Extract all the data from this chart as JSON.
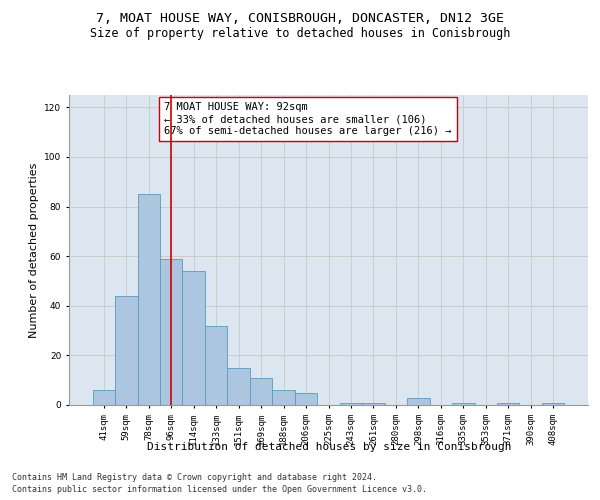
{
  "title_line1": "7, MOAT HOUSE WAY, CONISBROUGH, DONCASTER, DN12 3GE",
  "title_line2": "Size of property relative to detached houses in Conisbrough",
  "xlabel": "Distribution of detached houses by size in Conisbrough",
  "ylabel": "Number of detached properties",
  "bar_labels": [
    "41sqm",
    "59sqm",
    "78sqm",
    "96sqm",
    "114sqm",
    "133sqm",
    "151sqm",
    "169sqm",
    "188sqm",
    "206sqm",
    "225sqm",
    "243sqm",
    "261sqm",
    "280sqm",
    "298sqm",
    "316sqm",
    "335sqm",
    "353sqm",
    "371sqm",
    "390sqm",
    "408sqm"
  ],
  "bar_values": [
    6,
    44,
    85,
    59,
    54,
    32,
    15,
    11,
    6,
    5,
    0,
    1,
    1,
    0,
    3,
    0,
    1,
    0,
    1,
    0,
    1
  ],
  "bar_color": "#adc6e0",
  "bar_edge_color": "#5a9abe",
  "vline_x": 3.0,
  "vline_color": "#cc0000",
  "annotation_text": "7 MOAT HOUSE WAY: 92sqm\n← 33% of detached houses are smaller (106)\n67% of semi-detached houses are larger (216) →",
  "annotation_box_color": "#ffffff",
  "annotation_box_edge": "#cc0000",
  "ylim": [
    0,
    125
  ],
  "yticks": [
    0,
    20,
    40,
    60,
    80,
    100,
    120
  ],
  "grid_color": "#cccccc",
  "bg_color": "#dce6f0",
  "footer_line1": "Contains HM Land Registry data © Crown copyright and database right 2024.",
  "footer_line2": "Contains public sector information licensed under the Open Government Licence v3.0.",
  "title_fontsize": 9.5,
  "subtitle_fontsize": 8.5,
  "axis_label_fontsize": 8,
  "tick_fontsize": 6.5,
  "annotation_fontsize": 7.5,
  "footer_fontsize": 6
}
